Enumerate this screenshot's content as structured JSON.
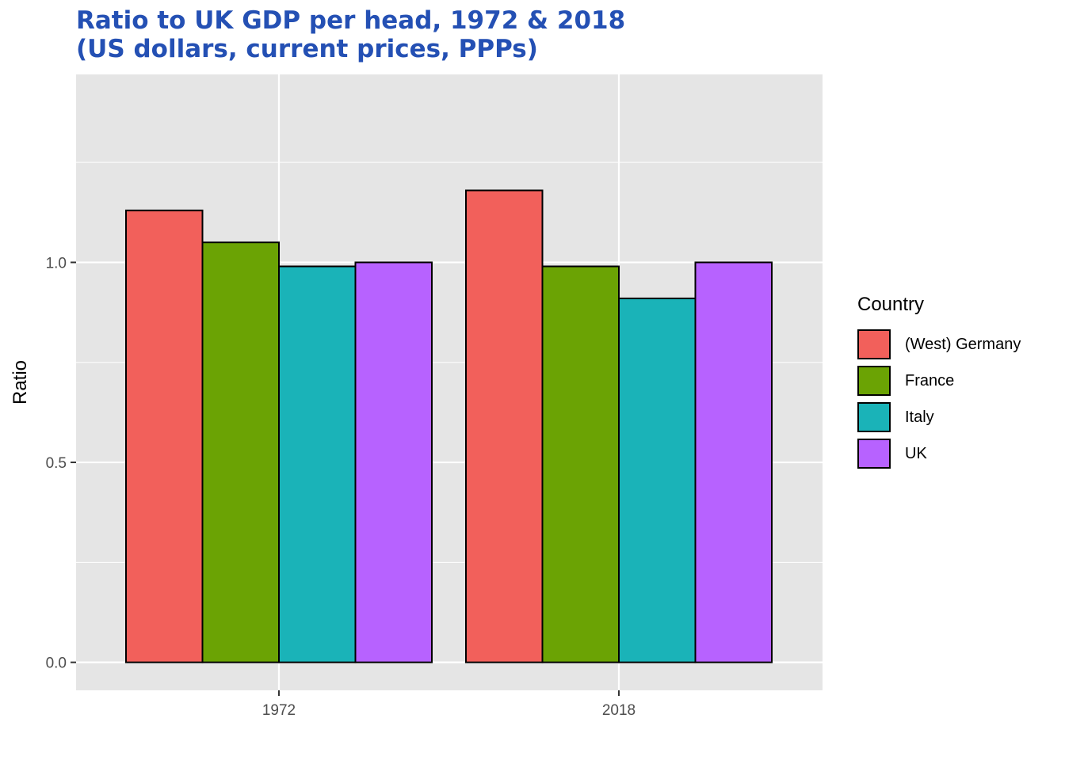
{
  "title": {
    "line1": "Ratio to UK GDP per head, 1972 & 2018",
    "line2": "(US dollars, current prices, PPPs)"
  },
  "chart_data": {
    "type": "bar",
    "categories": [
      "1972",
      "2018"
    ],
    "series": [
      {
        "name": "(West) Germany",
        "color": "#F2605B",
        "values": [
          1.13,
          1.18
        ]
      },
      {
        "name": "France",
        "color": "#6BA304",
        "values": [
          1.05,
          0.99
        ]
      },
      {
        "name": "Italy",
        "color": "#1AB3B8",
        "values": [
          0.99,
          0.91
        ]
      },
      {
        "name": "UK",
        "color": "#B762FF",
        "values": [
          1.0,
          1.0
        ]
      }
    ],
    "xlabel": "",
    "ylabel": "Ratio",
    "ylim": [
      -0.07,
      1.47
    ],
    "yticks": [
      0.0,
      0.5,
      1.0
    ],
    "ytick_labels": [
      "0.0",
      "0.5",
      "1.0"
    ],
    "grid": true,
    "legend_title": "Country",
    "legend_position": "right"
  }
}
